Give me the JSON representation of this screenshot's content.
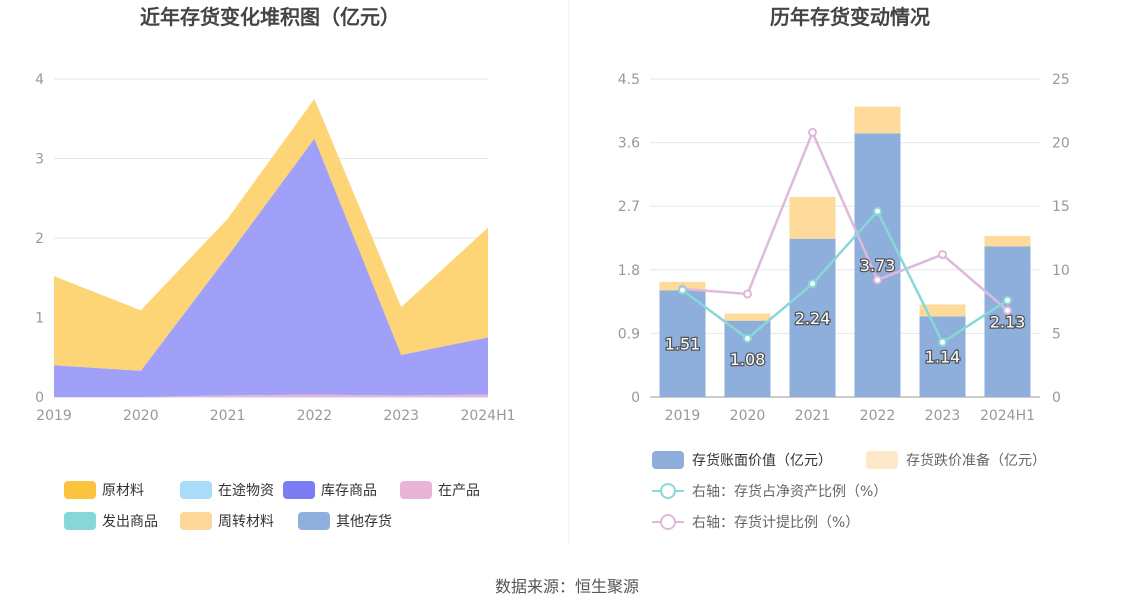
{
  "source": "数据来源：恒生聚源",
  "chart_data": [
    {
      "type": "area",
      "stacked": true,
      "title": "近年存货变化堆积图（亿元）",
      "categories": [
        "2019",
        "2020",
        "2021",
        "2022",
        "2023",
        "2024H1"
      ],
      "ylim": [
        0,
        4
      ],
      "yticks": [
        0,
        1,
        2,
        3,
        4
      ],
      "grid": true,
      "legend_position": "bottom",
      "legend": [
        "原材料",
        "在途物资",
        "库存商品",
        "在产品",
        "发出商品",
        "周转材料",
        "其他存货"
      ],
      "series": [
        {
          "name": "在产品",
          "color": "#e8b4d8",
          "values": [
            0.0,
            0.0,
            0.02,
            0.03,
            0.02,
            0.03
          ]
        },
        {
          "name": "库存商品",
          "color": "#a0a0f8",
          "values": [
            0.4,
            0.33,
            1.75,
            3.22,
            0.51,
            0.72
          ]
        },
        {
          "name": "原材料",
          "color": "#fdd577",
          "values": [
            1.12,
            0.76,
            0.47,
            0.5,
            0.6,
            1.38
          ]
        }
      ],
      "legend_colors": [
        "#fdc33f",
        "#a8dcf8",
        "#7c7cf5",
        "#e8b4d8",
        "#86d8d8",
        "#fdd79a",
        "#8fb0dc"
      ]
    },
    {
      "type": "bar",
      "stacked": true,
      "title": "历年存货变动情况",
      "categories": [
        "2019",
        "2020",
        "2021",
        "2022",
        "2023",
        "2024H1"
      ],
      "ylim": [
        0,
        4.5
      ],
      "yticks": [
        "0",
        "0.9",
        "1.8",
        "2.7",
        "3.6",
        "4.5"
      ],
      "y2lim": [
        0,
        25
      ],
      "y2ticks": [
        "0",
        "5",
        "10",
        "15",
        "20",
        "25"
      ],
      "grid": true,
      "legend_position": "bottom",
      "series": [
        {
          "name": "存货账面价值（亿元）",
          "type": "bar",
          "color": "#8eaedc",
          "values": [
            1.51,
            1.08,
            2.24,
            3.73,
            1.14,
            2.13
          ],
          "labels": [
            "1.51",
            "1.08",
            "2.24",
            "3.73",
            "1.14",
            "2.13"
          ]
        },
        {
          "name": "存货跌价准备（亿元）",
          "type": "bar",
          "color": "#fedb9a",
          "legend_color": "#fde8c8",
          "values": [
            0.12,
            0.1,
            0.59,
            0.38,
            0.17,
            0.15
          ]
        },
        {
          "name": "右轴：存货占净资产比例（%）",
          "type": "line",
          "axis": "right",
          "color": "#88d8d8",
          "values": [
            8.4,
            4.6,
            8.9,
            14.6,
            4.3,
            7.6
          ]
        },
        {
          "name": "右轴：存货计提比例（%）",
          "type": "line",
          "axis": "right",
          "color": "#e0b8dc",
          "values": [
            8.5,
            8.1,
            20.8,
            9.2,
            11.2,
            6.8
          ]
        }
      ]
    }
  ]
}
